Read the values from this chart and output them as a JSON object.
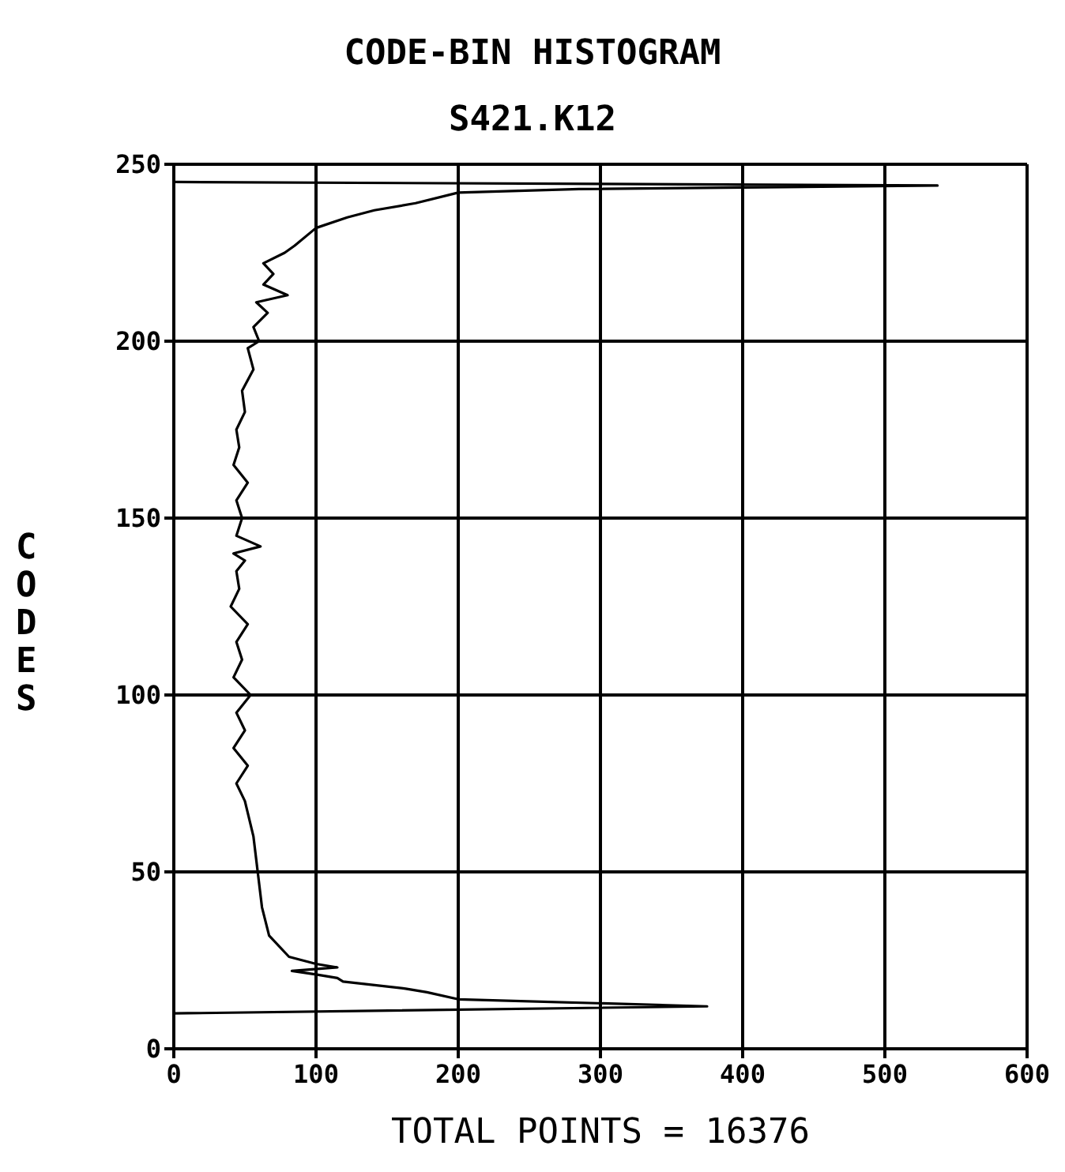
{
  "chart_data": {
    "type": "line",
    "title": "CODE-BIN HISTOGRAM",
    "subtitle": "S421.K12",
    "xlabel": "TOTAL POINTS = 16376",
    "ylabel": "CODES",
    "series": [
      {
        "color": "#000000",
        "x": [
          0,
          375,
          200,
          178,
          163,
          119,
          115,
          100,
          83,
          115,
          100,
          81,
          67,
          62,
          59,
          56,
          50,
          44,
          52,
          42,
          50,
          44,
          54,
          42,
          48,
          44,
          52,
          40,
          46,
          44,
          50,
          42,
          61,
          44,
          48,
          44,
          52,
          42,
          46,
          44,
          50,
          48,
          56,
          52,
          60,
          56,
          66,
          58,
          80,
          63,
          70,
          63,
          78,
          85,
          100,
          122,
          141,
          170,
          200,
          285,
          537,
          0
        ],
        "values": [
          10,
          12,
          14,
          16,
          17,
          19,
          20,
          21,
          22,
          23,
          24,
          26,
          32,
          40,
          50,
          60,
          70,
          75,
          80,
          85,
          90,
          95,
          100,
          105,
          110,
          115,
          120,
          125,
          130,
          135,
          138,
          140,
          142,
          145,
          150,
          155,
          160,
          165,
          170,
          175,
          180,
          186,
          192,
          198,
          200,
          204,
          208,
          211,
          213,
          216,
          219,
          222,
          225,
          227,
          232,
          235,
          237,
          239,
          242,
          243,
          244,
          245
        ],
        "line_style": "solid"
      }
    ],
    "xlim": [
      0,
      600
    ],
    "xticks": [
      0,
      100,
      200,
      300,
      400,
      500,
      600
    ],
    "ylim": [
      0,
      250
    ],
    "yticks": [
      0,
      50,
      100,
      150,
      200,
      250
    ],
    "grid": true,
    "marker": "none"
  }
}
